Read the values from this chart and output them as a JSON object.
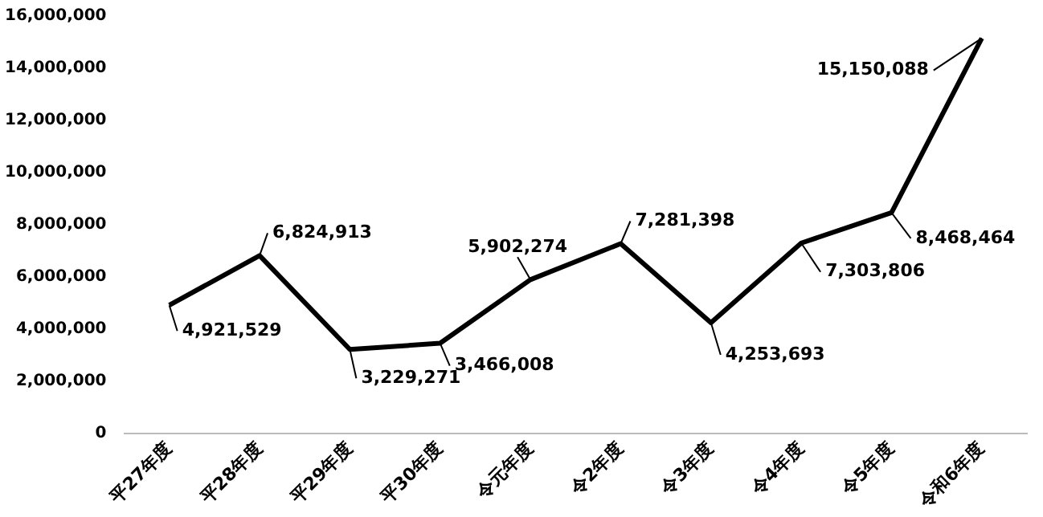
{
  "chart_data": {
    "type": "line",
    "categories": [
      "平27年度",
      "平28年度",
      "平29年度",
      "平30年度",
      "令元年度",
      "令2年度",
      "令3年度",
      "令4年度",
      "令5年度",
      "令和6年度"
    ],
    "series": [
      {
        "color": "#000000",
        "values": [
          4921529,
          6824913,
          3229271,
          3466008,
          5902274,
          7281398,
          4253693,
          7303806,
          8468464,
          15150088
        ],
        "value_labels": [
          "4,921,529",
          "6,824,913",
          "3,229,271",
          "3,466,008",
          "5,902,274",
          "7,281,398",
          "4,253,693",
          "7,303,806",
          "8,468,464",
          "15,150,088"
        ]
      }
    ],
    "ylim": [
      0,
      16000000
    ],
    "yticks": [
      0,
      {
        "value": 2000000,
        "label": "2,000,000"
      },
      {
        "value": 4000000,
        "label": "4,000,000"
      },
      {
        "value": 6000000,
        "label": "6,000,000"
      },
      {
        "value": 8000000,
        "label": "8,000,000"
      },
      {
        "value": 10000000,
        "label": "10,000,000"
      },
      {
        "value": 12000000,
        "label": "12,000,000"
      },
      {
        "value": 14000000,
        "label": "14,000,000"
      },
      {
        "value": 16000000,
        "label": "16,000,000"
      }
    ],
    "grid": false,
    "legend": false,
    "marker": "none",
    "line_style": "solid"
  }
}
